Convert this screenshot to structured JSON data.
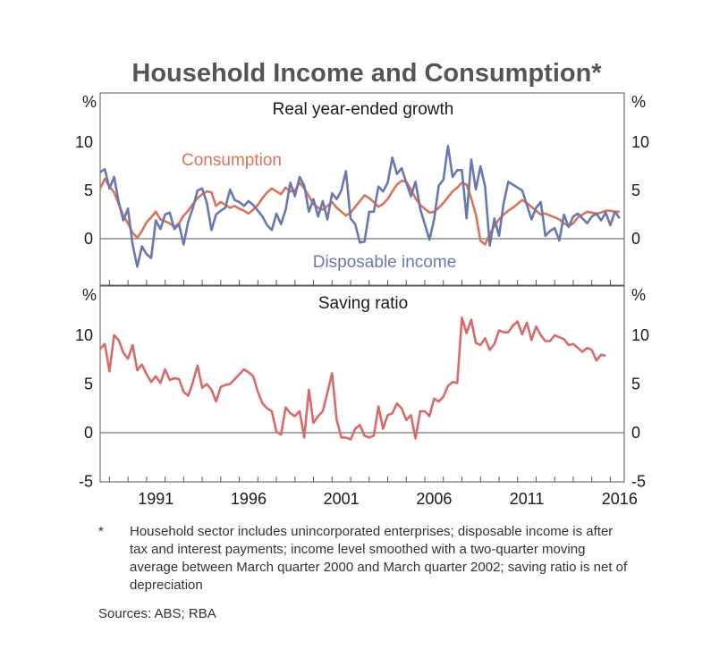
{
  "title": "Household Income and Consumption*",
  "footnote": {
    "marker": "*",
    "text": "Household sector includes unincorporated enterprises; disposable income is after tax and interest payments; income level smoothed with a two-quarter moving average between March quarter 2000 and March quarter 2002; saving ratio is net of depreciation"
  },
  "sources": "Sources:  ABS; RBA",
  "x_ticks": [
    "1991",
    "1996",
    "2001",
    "2006",
    "2011",
    "2016"
  ],
  "colors": {
    "consumption": "#d9735a",
    "income": "#6a78b0",
    "saving": "#d96a6a",
    "axis": "#555555"
  },
  "chart_data": [
    {
      "type": "line",
      "title": "Real year-ended growth",
      "unit_left": "%",
      "unit_right": "%",
      "ylim": [
        -5,
        15
      ],
      "yticks": [
        "10",
        "5",
        "0"
      ],
      "ytick_values": [
        10,
        5,
        0
      ],
      "x_start": 1988.5,
      "x_step": 0.25,
      "xlim": [
        1988.5,
        2016.75
      ],
      "series": [
        {
          "name": "Consumption",
          "label": "Consumption",
          "values": [
            5.2,
            6.2,
            5.4,
            4.8,
            3.6,
            2.4,
            1.6,
            0.6,
            0.1,
            0.8,
            1.7,
            2.2,
            2.8,
            2.0,
            1.8,
            1.6,
            1.2,
            1.6,
            2.4,
            2.9,
            3.6,
            4.2,
            4.6,
            4.9,
            4.8,
            3.4,
            3.8,
            3.5,
            3.2,
            3.4,
            3.1,
            2.9,
            2.6,
            3.0,
            3.5,
            4.2,
            4.8,
            5.2,
            4.9,
            4.6,
            5.3,
            4.9,
            5.0,
            5.8,
            5.2,
            4.4,
            3.6,
            3.2,
            3.0,
            3.4,
            3.8,
            3.2,
            2.8,
            2.4,
            2.7,
            3.3,
            3.9,
            4.5,
            4.2,
            3.8,
            3.3,
            3.6,
            4.1,
            4.9,
            5.6,
            6.0,
            5.9,
            5.1,
            4.2,
            3.5,
            3.1,
            2.7,
            2.8,
            3.2,
            3.7,
            4.3,
            4.9,
            5.3,
            5.8,
            5.6,
            4.2,
            2.5,
            -0.2,
            -0.6,
            0.5,
            1.3,
            2.0,
            2.5,
            2.9,
            3.2,
            3.6,
            4.0,
            3.7,
            3.3,
            2.9,
            2.5,
            2.6,
            2.4,
            2.2,
            2.0,
            1.6,
            1.3,
            1.6,
            2.2,
            2.5,
            2.8,
            2.7,
            2.6,
            2.7,
            2.9,
            2.9,
            2.8,
            2.8
          ]
        },
        {
          "name": "Disposable income",
          "label": "Disposable income",
          "values": [
            6.9,
            7.2,
            5.2,
            6.4,
            3.8,
            1.9,
            3.1,
            -0.6,
            -2.9,
            -0.8,
            -1.6,
            -2.0,
            1.9,
            1.0,
            2.5,
            2.7,
            1.0,
            1.5,
            -0.6,
            1.8,
            3.2,
            5.0,
            5.2,
            3.7,
            0.9,
            2.5,
            2.9,
            3.2,
            5.1,
            4.0,
            3.8,
            3.4,
            3.9,
            3.5,
            2.9,
            2.3,
            1.4,
            0.9,
            2.6,
            1.5,
            3.0,
            5.8,
            4.4,
            6.4,
            5.5,
            2.8,
            4.1,
            2.3,
            3.9,
            2.0,
            4.7,
            4.1,
            5.0,
            7.0,
            2.1,
            1.5,
            -0.4,
            -0.3,
            2.8,
            2.8,
            5.4,
            4.9,
            5.8,
            8.4,
            6.7,
            7.3,
            5.8,
            4.4,
            5.9,
            3.1,
            1.5,
            -0.1,
            2.0,
            5.5,
            6.1,
            9.6,
            6.4,
            7.1,
            7.1,
            2.1,
            8.2,
            5.1,
            7.5,
            5.4,
            -0.7,
            2.1,
            0.3,
            3.7,
            5.9,
            5.6,
            5.3,
            5.0,
            3.5,
            2.0,
            3.2,
            3.8,
            0.3,
            0.8,
            1.1,
            -0.2,
            2.5,
            1.2,
            2.3,
            2.6,
            2.1,
            1.6,
            2.3,
            2.6,
            1.9,
            2.7,
            1.4,
            2.8,
            2.1
          ]
        }
      ],
      "annotations": [
        "Consumption",
        "Disposable income"
      ]
    },
    {
      "type": "line",
      "title": "Saving ratio",
      "unit_left": "%",
      "unit_right": "%",
      "ylim": [
        -5,
        15
      ],
      "yticks": [
        "10",
        "5",
        "0",
        "-5"
      ],
      "ytick_values": [
        10,
        5,
        0,
        -5
      ],
      "x_start": 1988.5,
      "x_step": 0.25,
      "xlim": [
        1988.5,
        2016.75
      ],
      "series": [
        {
          "name": "Saving ratio",
          "values": [
            8.6,
            9.1,
            6.3,
            10.0,
            9.5,
            8.2,
            7.6,
            9.0,
            6.4,
            7.0,
            6.0,
            5.2,
            5.8,
            5.1,
            6.5,
            5.4,
            5.6,
            5.5,
            4.2,
            3.8,
            5.2,
            6.9,
            4.6,
            5.0,
            4.4,
            3.2,
            4.7,
            4.9,
            5.0,
            5.5,
            6.0,
            6.5,
            6.2,
            5.8,
            4.2,
            3.0,
            2.5,
            2.2,
            0.1,
            -0.2,
            2.6,
            2.0,
            1.7,
            2.2,
            -0.5,
            4.4,
            1.0,
            1.7,
            2.2,
            4.1,
            6.1,
            1.3,
            -0.5,
            -0.5,
            -0.7,
            0.4,
            0.8,
            -0.3,
            -0.5,
            -0.3,
            2.7,
            0.4,
            1.8,
            2.0,
            3.0,
            2.5,
            1.3,
            1.8,
            -0.6,
            2.2,
            2.2,
            1.7,
            3.5,
            3.2,
            3.7,
            4.8,
            5.2,
            5.1,
            11.8,
            10.2,
            11.6,
            9.2,
            9.0,
            9.7,
            8.5,
            9.1,
            10.5,
            10.3,
            10.3,
            11.0,
            11.4,
            10.1,
            11.3,
            9.5,
            10.9,
            10.0,
            9.4,
            9.4,
            10.0,
            9.8,
            9.6,
            9.0,
            9.1,
            8.7,
            8.3,
            8.7,
            8.5,
            7.4,
            8.0,
            7.9
          ]
        }
      ]
    }
  ]
}
